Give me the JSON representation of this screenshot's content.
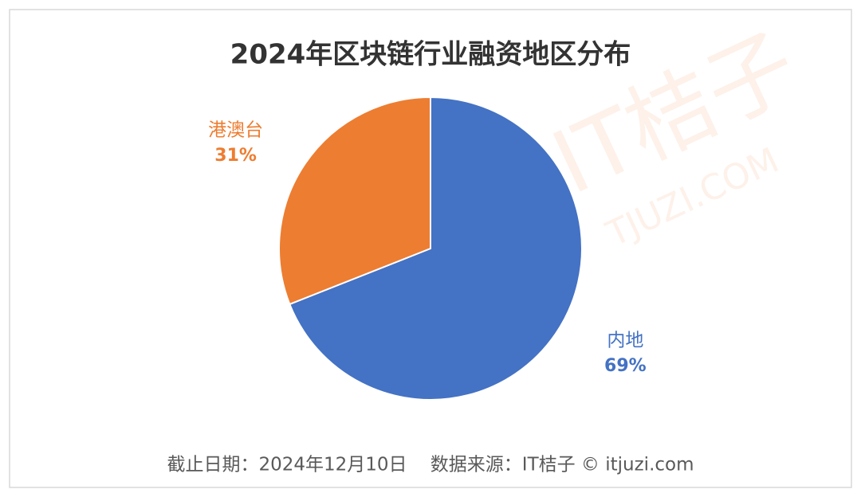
{
  "chart_data": {
    "type": "pie",
    "title": "2024年区块链行业融资地区分布",
    "categories": [
      "内地",
      "港澳台"
    ],
    "values": [
      69,
      31
    ],
    "value_labels": [
      "69%",
      "31%"
    ],
    "colors": [
      "#4472c4",
      "#ed7d31"
    ],
    "footer": "截止日期：2024年12月10日    数据来源：IT桔子 © itjuzi.com",
    "watermark": [
      "IT桔子",
      "TJUZI.COM"
    ]
  }
}
